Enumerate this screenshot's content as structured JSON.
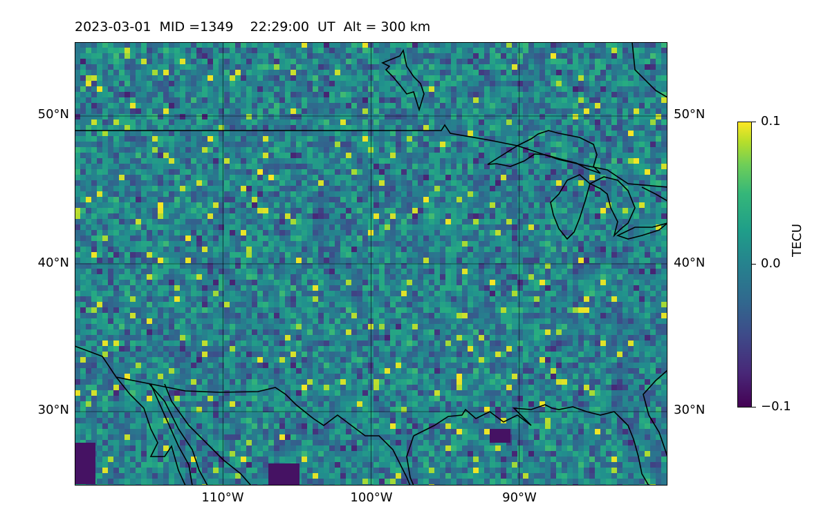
{
  "header": {
    "date": "2023-03-01",
    "mid": "MID =1349",
    "time": "22:29:00  UT",
    "altitude": "Alt = 300 km"
  },
  "map": {
    "type": "heatmap",
    "projection": "lat-lon",
    "lon_range": [
      -120,
      -80
    ],
    "lat_range": [
      25,
      55
    ],
    "grid": true,
    "lat_ticks": [
      {
        "value": 50,
        "label": "50°N"
      },
      {
        "value": 40,
        "label": "40°N"
      },
      {
        "value": 30,
        "label": "30°N"
      }
    ],
    "lon_ticks": [
      {
        "value": -110,
        "label": "110°W"
      },
      {
        "value": -100,
        "label": "100°W"
      },
      {
        "value": -90,
        "label": "90°W"
      }
    ]
  },
  "colorbar": {
    "label": "TECU",
    "colormap": "viridis",
    "range": [
      -0.1,
      0.1
    ],
    "ticks": [
      {
        "value": 0.1,
        "label": "0.1"
      },
      {
        "value": 0.0,
        "label": "0.0"
      },
      {
        "value": -0.1,
        "label": "−0.1"
      }
    ]
  }
}
